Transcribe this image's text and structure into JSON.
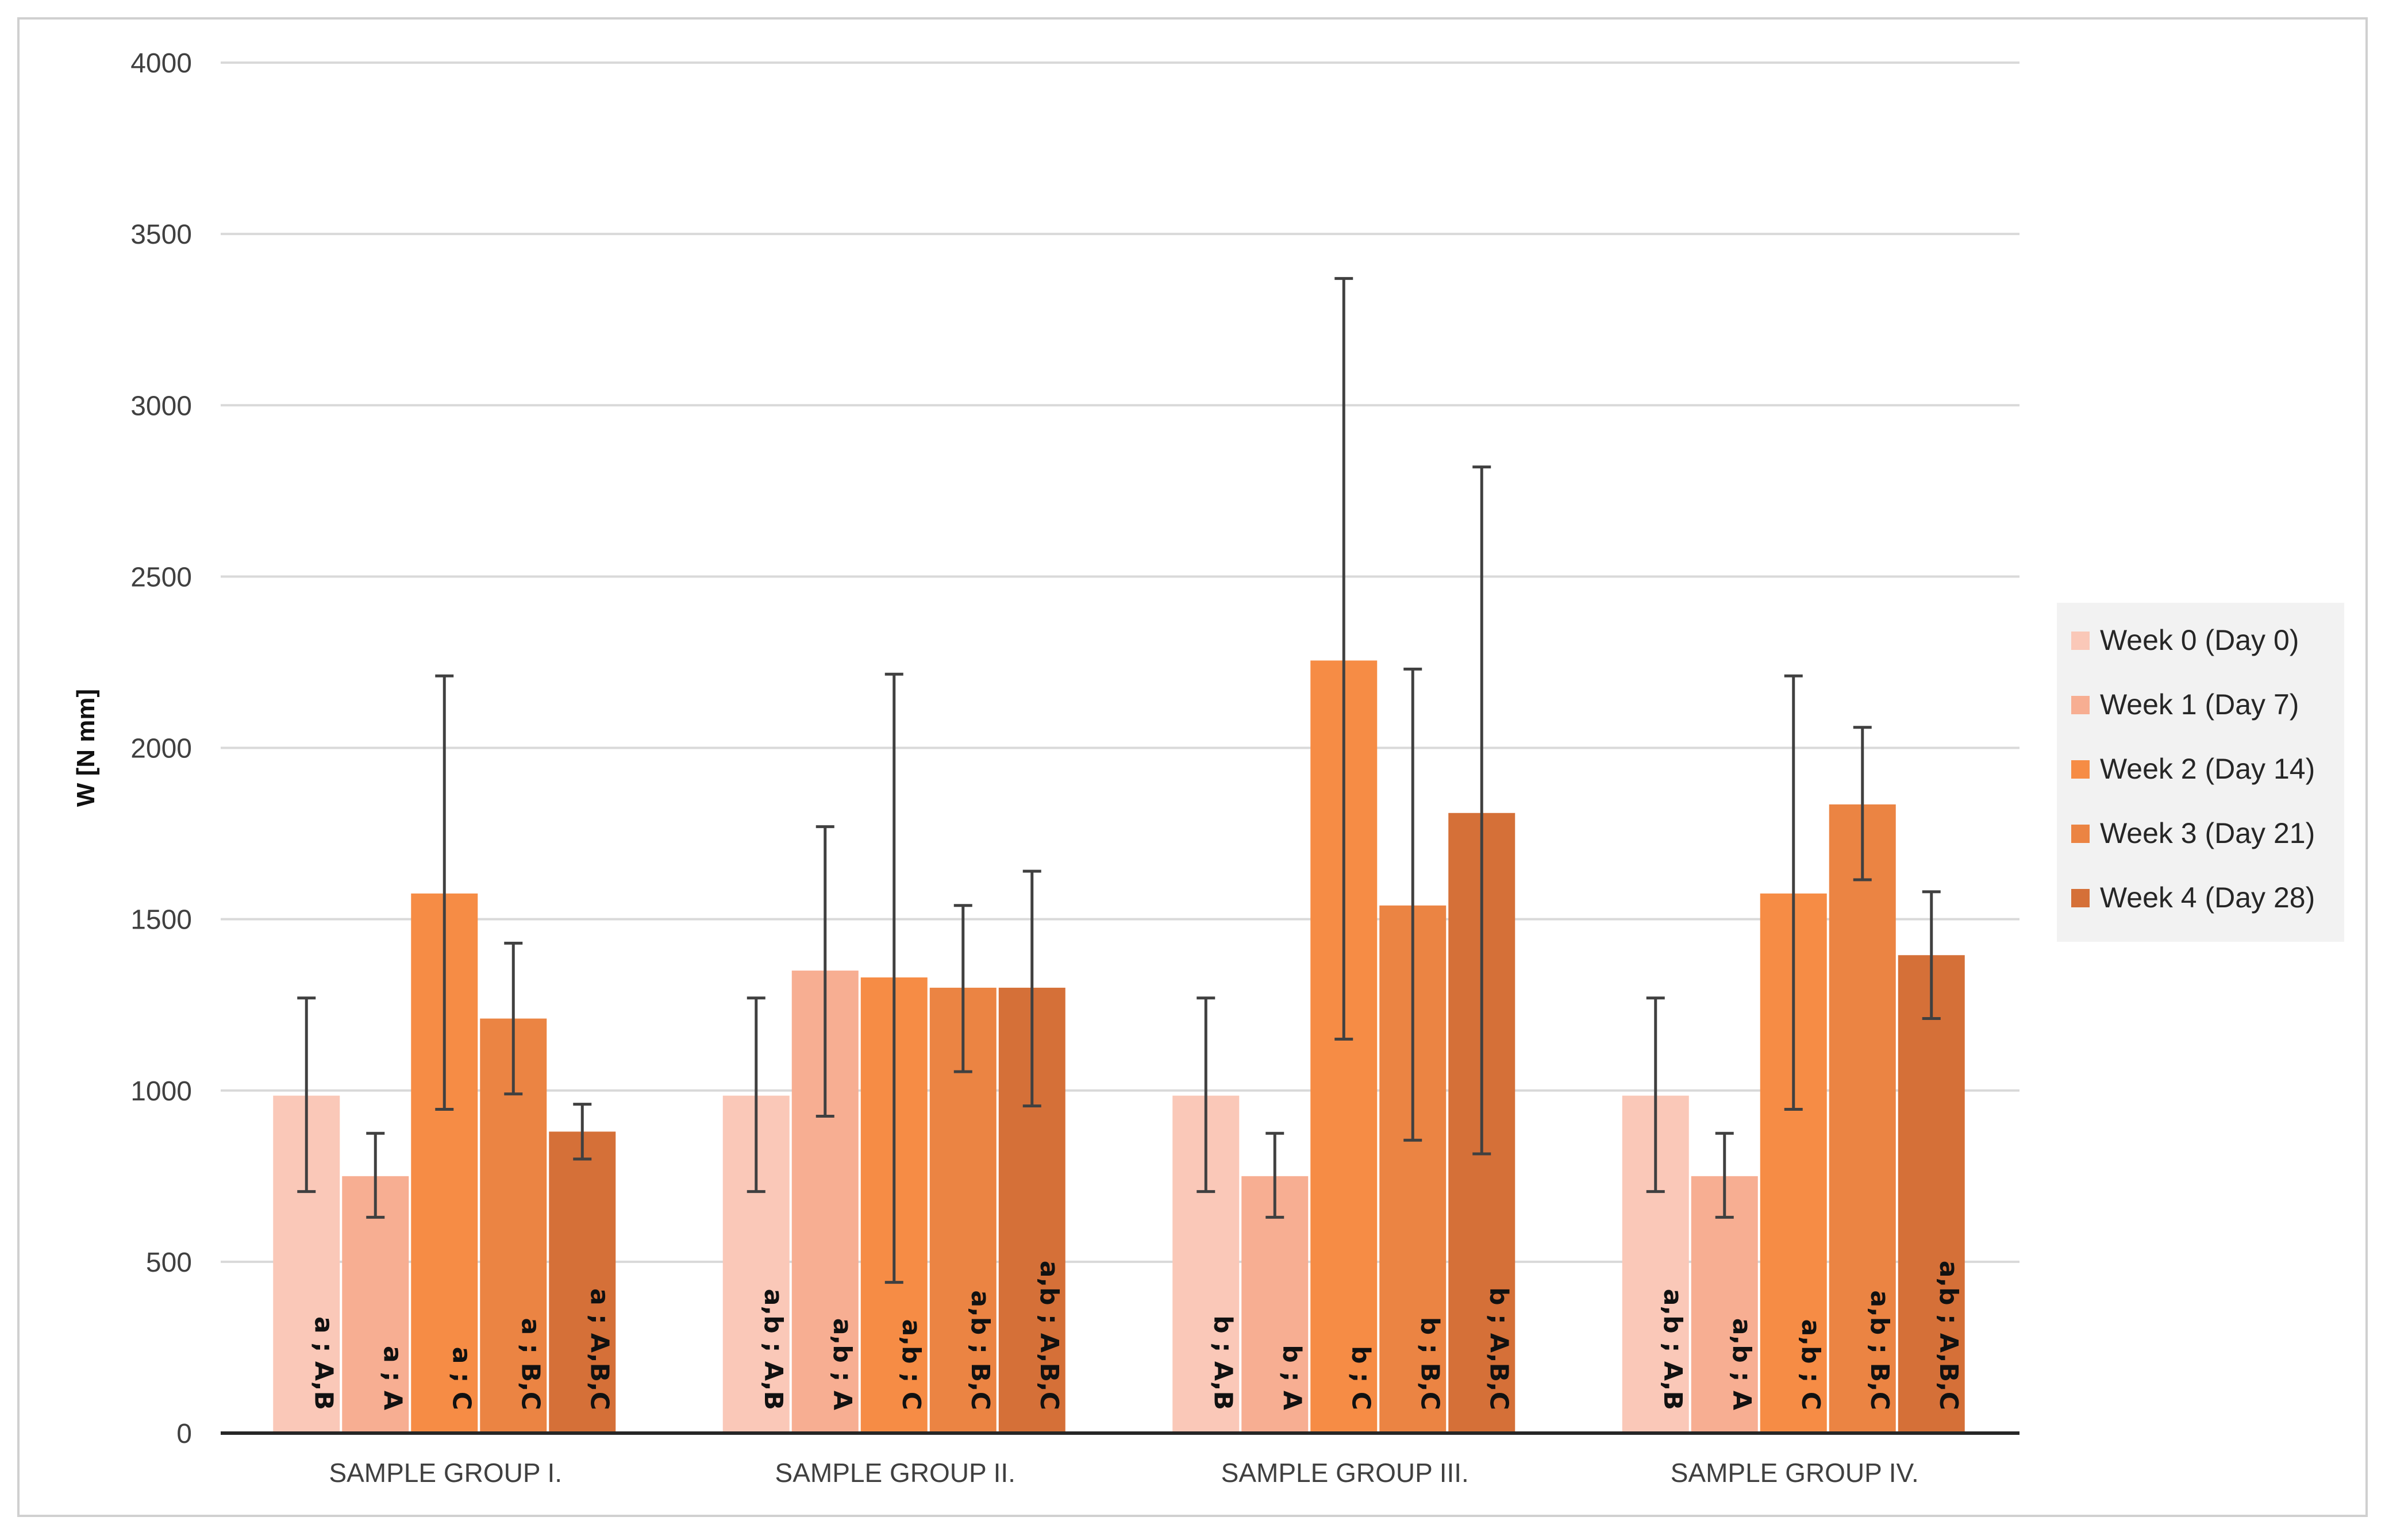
{
  "chart_data": {
    "type": "bar",
    "title": "",
    "xlabel": "",
    "ylabel": "W [N mm]",
    "ylim": [
      0,
      4000
    ],
    "yticks": [
      0,
      500,
      1000,
      1500,
      2000,
      2500,
      3000,
      3500,
      4000
    ],
    "grid": true,
    "legend_position": "right",
    "categories": [
      "SAMPLE GROUP I.",
      "SAMPLE GROUP II.",
      "SAMPLE GROUP III.",
      "SAMPLE GROUP IV."
    ],
    "series": [
      {
        "name": "Week 0 (Day 0)",
        "color": "#FAC8B8",
        "values": [
          985,
          985,
          985,
          985
        ],
        "error_low": [
          705,
          705,
          705,
          705
        ],
        "error_high": [
          1270,
          1270,
          1270,
          1270
        ],
        "labels": [
          "a ; A,B",
          "a,b ; A,B",
          "b ; A,B",
          "a,b ; A,B"
        ]
      },
      {
        "name": "Week 1 (Day 7)",
        "color": "#F7AE92",
        "values": [
          750,
          1350,
          750,
          750
        ],
        "error_low": [
          630,
          925,
          630,
          630
        ],
        "error_high": [
          875,
          1770,
          875,
          875
        ],
        "labels": [
          "a ; A",
          "a,b ; A",
          "b ; A",
          "a,b ; A"
        ]
      },
      {
        "name": "Week 2 (Day 14)",
        "color": "#F68C45",
        "values": [
          1575,
          1330,
          2255,
          1575
        ],
        "error_low": [
          945,
          440,
          1150,
          945
        ],
        "error_high": [
          2210,
          2215,
          3370,
          2210
        ],
        "labels": [
          "a ; C",
          "a,b ; C",
          "b ; C",
          "a,b ; C"
        ]
      },
      {
        "name": "Week 3 (Day 21)",
        "color": "#EB8443",
        "values": [
          1210,
          1300,
          1540,
          1835
        ],
        "error_low": [
          990,
          1055,
          855,
          1615
        ],
        "error_high": [
          1430,
          1540,
          2230,
          2060
        ],
        "labels": [
          "a ; B,C",
          "a,b ; B,C",
          "b ; B,C",
          "a,b ; B,C"
        ]
      },
      {
        "name": "Week 4 (Day 28)",
        "color": "#D57038",
        "values": [
          880,
          1300,
          1810,
          1395
        ],
        "error_low": [
          800,
          955,
          815,
          1210
        ],
        "error_high": [
          960,
          1640,
          2820,
          1580
        ],
        "labels": [
          "a ; A,B,C",
          "a,b ; A,B,C",
          "b ; A,B,C",
          "a,b ; A,B,C"
        ]
      }
    ]
  }
}
